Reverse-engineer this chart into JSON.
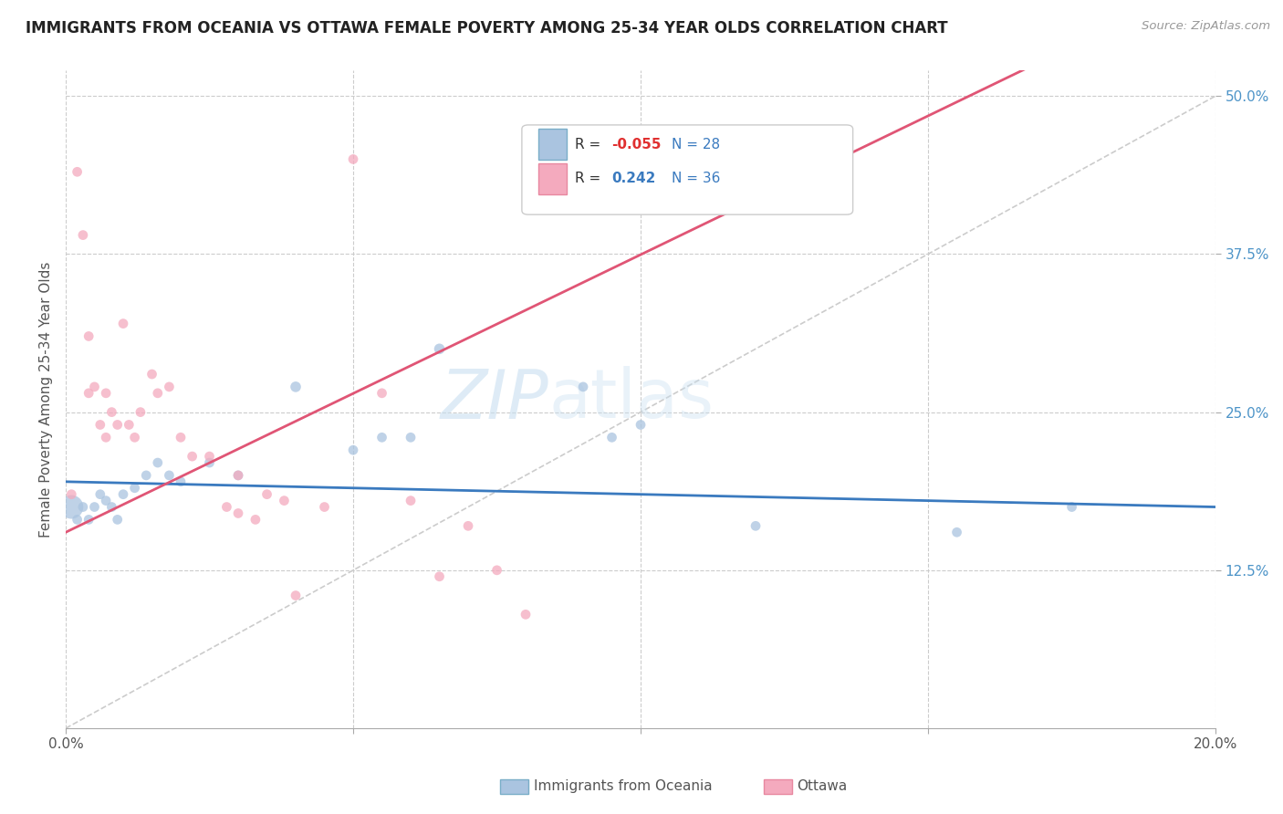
{
  "title": "IMMIGRANTS FROM OCEANIA VS OTTAWA FEMALE POVERTY AMONG 25-34 YEAR OLDS CORRELATION CHART",
  "source": "Source: ZipAtlas.com",
  "ylabel": "Female Poverty Among 25-34 Year Olds",
  "xlim": [
    0.0,
    0.2
  ],
  "ylim": [
    0.0,
    0.52
  ],
  "xticks": [
    0.0,
    0.05,
    0.1,
    0.15,
    0.2
  ],
  "xticklabels": [
    "0.0%",
    "",
    "",
    "",
    "20.0%"
  ],
  "yticks": [
    0.125,
    0.25,
    0.375,
    0.5
  ],
  "yticklabels": [
    "12.5%",
    "25.0%",
    "37.5%",
    "50.0%"
  ],
  "blue_color": "#aac4e0",
  "pink_color": "#f4aabe",
  "blue_line_color": "#3a7abf",
  "pink_line_color": "#e05575",
  "watermark_zip": "ZIP",
  "watermark_atlas": "atlas",
  "blue_scatter_x": [
    0.001,
    0.002,
    0.003,
    0.004,
    0.005,
    0.006,
    0.007,
    0.008,
    0.009,
    0.01,
    0.012,
    0.014,
    0.016,
    0.018,
    0.02,
    0.025,
    0.03,
    0.04,
    0.05,
    0.055,
    0.06,
    0.065,
    0.09,
    0.095,
    0.1,
    0.12,
    0.155,
    0.175
  ],
  "blue_scatter_y": [
    0.175,
    0.165,
    0.175,
    0.165,
    0.175,
    0.185,
    0.18,
    0.175,
    0.165,
    0.185,
    0.19,
    0.2,
    0.21,
    0.2,
    0.195,
    0.21,
    0.2,
    0.27,
    0.22,
    0.23,
    0.23,
    0.3,
    0.27,
    0.23,
    0.24,
    0.16,
    0.155,
    0.175
  ],
  "blue_scatter_size": [
    350,
    60,
    60,
    60,
    60,
    60,
    60,
    60,
    60,
    60,
    60,
    60,
    60,
    60,
    60,
    60,
    60,
    70,
    60,
    60,
    60,
    70,
    60,
    60,
    60,
    60,
    60,
    60
  ],
  "pink_scatter_x": [
    0.001,
    0.002,
    0.003,
    0.004,
    0.004,
    0.005,
    0.006,
    0.007,
    0.007,
    0.008,
    0.009,
    0.01,
    0.011,
    0.012,
    0.013,
    0.015,
    0.016,
    0.018,
    0.02,
    0.022,
    0.025,
    0.028,
    0.03,
    0.03,
    0.033,
    0.035,
    0.038,
    0.04,
    0.045,
    0.05,
    0.055,
    0.06,
    0.065,
    0.07,
    0.075,
    0.08
  ],
  "pink_scatter_y": [
    0.185,
    0.44,
    0.39,
    0.31,
    0.265,
    0.27,
    0.24,
    0.265,
    0.23,
    0.25,
    0.24,
    0.32,
    0.24,
    0.23,
    0.25,
    0.28,
    0.265,
    0.27,
    0.23,
    0.215,
    0.215,
    0.175,
    0.17,
    0.2,
    0.165,
    0.185,
    0.18,
    0.105,
    0.175,
    0.45,
    0.265,
    0.18,
    0.12,
    0.16,
    0.125,
    0.09
  ],
  "pink_scatter_size": [
    60,
    60,
    60,
    60,
    60,
    60,
    60,
    60,
    60,
    60,
    60,
    60,
    60,
    60,
    60,
    60,
    60,
    60,
    60,
    60,
    60,
    60,
    60,
    60,
    60,
    60,
    60,
    60,
    60,
    60,
    60,
    60,
    60,
    60,
    60,
    60
  ],
  "blue_trend_x": [
    0.0,
    0.2
  ],
  "blue_trend_y": [
    0.195,
    0.175
  ],
  "pink_trend_x": [
    0.0,
    0.082
  ],
  "pink_trend_y": [
    0.155,
    0.335
  ]
}
